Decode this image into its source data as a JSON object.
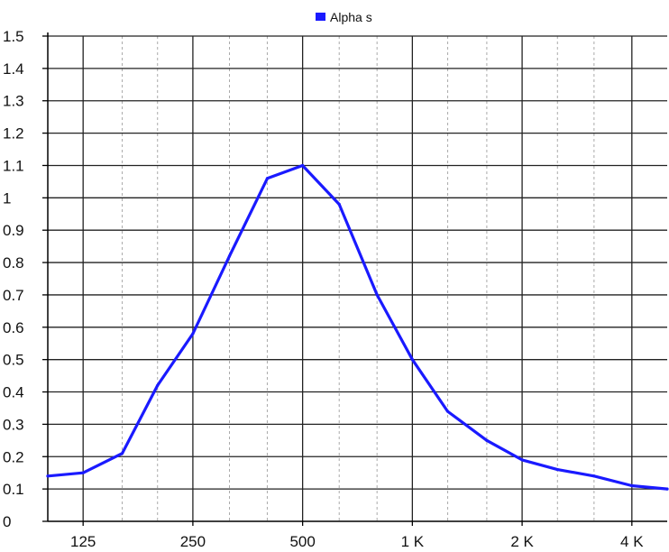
{
  "chart_data": {
    "type": "line",
    "title": "",
    "xlabel": "",
    "ylabel": "",
    "x_scale": "log",
    "x_ticks": [
      {
        "value": 125,
        "label": "125"
      },
      {
        "value": 250,
        "label": "250"
      },
      {
        "value": 500,
        "label": "500"
      },
      {
        "value": 1000,
        "label": "1 K"
      },
      {
        "value": 2000,
        "label": "2 K"
      },
      {
        "value": 4000,
        "label": "4 K"
      }
    ],
    "xlim": [
      100,
      5000
    ],
    "ylim": [
      0,
      1.5
    ],
    "y_ticks": [
      {
        "value": 0,
        "label": "0"
      },
      {
        "value": 0.1,
        "label": "0.1"
      },
      {
        "value": 0.2,
        "label": "0.2"
      },
      {
        "value": 0.3,
        "label": "0.3"
      },
      {
        "value": 0.4,
        "label": "0.4"
      },
      {
        "value": 0.5,
        "label": "0.5"
      },
      {
        "value": 0.6,
        "label": "0.6"
      },
      {
        "value": 0.7,
        "label": "0.7"
      },
      {
        "value": 0.8,
        "label": "0.8"
      },
      {
        "value": 0.9,
        "label": "0.9"
      },
      {
        "value": 1,
        "label": "1"
      },
      {
        "value": 1.1,
        "label": "1.1"
      },
      {
        "value": 1.2,
        "label": "1.2"
      },
      {
        "value": 1.3,
        "label": "1.3"
      },
      {
        "value": 1.4,
        "label": "1.4"
      },
      {
        "value": 1.5,
        "label": "1.5"
      }
    ],
    "grid": true,
    "minor_grid": true,
    "legend_position": "top-center",
    "series": [
      {
        "name": "Alpha s",
        "color": "#1a1aff",
        "points": [
          {
            "x": 100,
            "y": 0.14
          },
          {
            "x": 125,
            "y": 0.15
          },
          {
            "x": 160,
            "y": 0.21
          },
          {
            "x": 200,
            "y": 0.42
          },
          {
            "x": 250,
            "y": 0.58
          },
          {
            "x": 315,
            "y": 0.82
          },
          {
            "x": 400,
            "y": 1.06
          },
          {
            "x": 500,
            "y": 1.1
          },
          {
            "x": 630,
            "y": 0.98
          },
          {
            "x": 800,
            "y": 0.7
          },
          {
            "x": 1000,
            "y": 0.5
          },
          {
            "x": 1250,
            "y": 0.34
          },
          {
            "x": 1600,
            "y": 0.25
          },
          {
            "x": 2000,
            "y": 0.19
          },
          {
            "x": 2500,
            "y": 0.16
          },
          {
            "x": 3150,
            "y": 0.14
          },
          {
            "x": 4000,
            "y": 0.11
          },
          {
            "x": 5000,
            "y": 0.1
          }
        ]
      }
    ]
  },
  "colors": {
    "background": "#ffffff",
    "major_grid": "#222222",
    "minor_grid": "#aaaaaa",
    "axis": "#000000",
    "text": "#111111"
  }
}
